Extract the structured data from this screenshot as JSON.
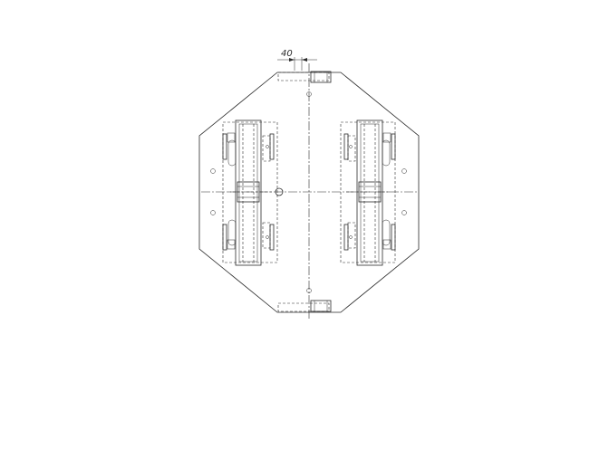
{
  "drawing": {
    "dimension_label": "40",
    "line_color": "#2a2a2a",
    "background": "#ffffff"
  }
}
